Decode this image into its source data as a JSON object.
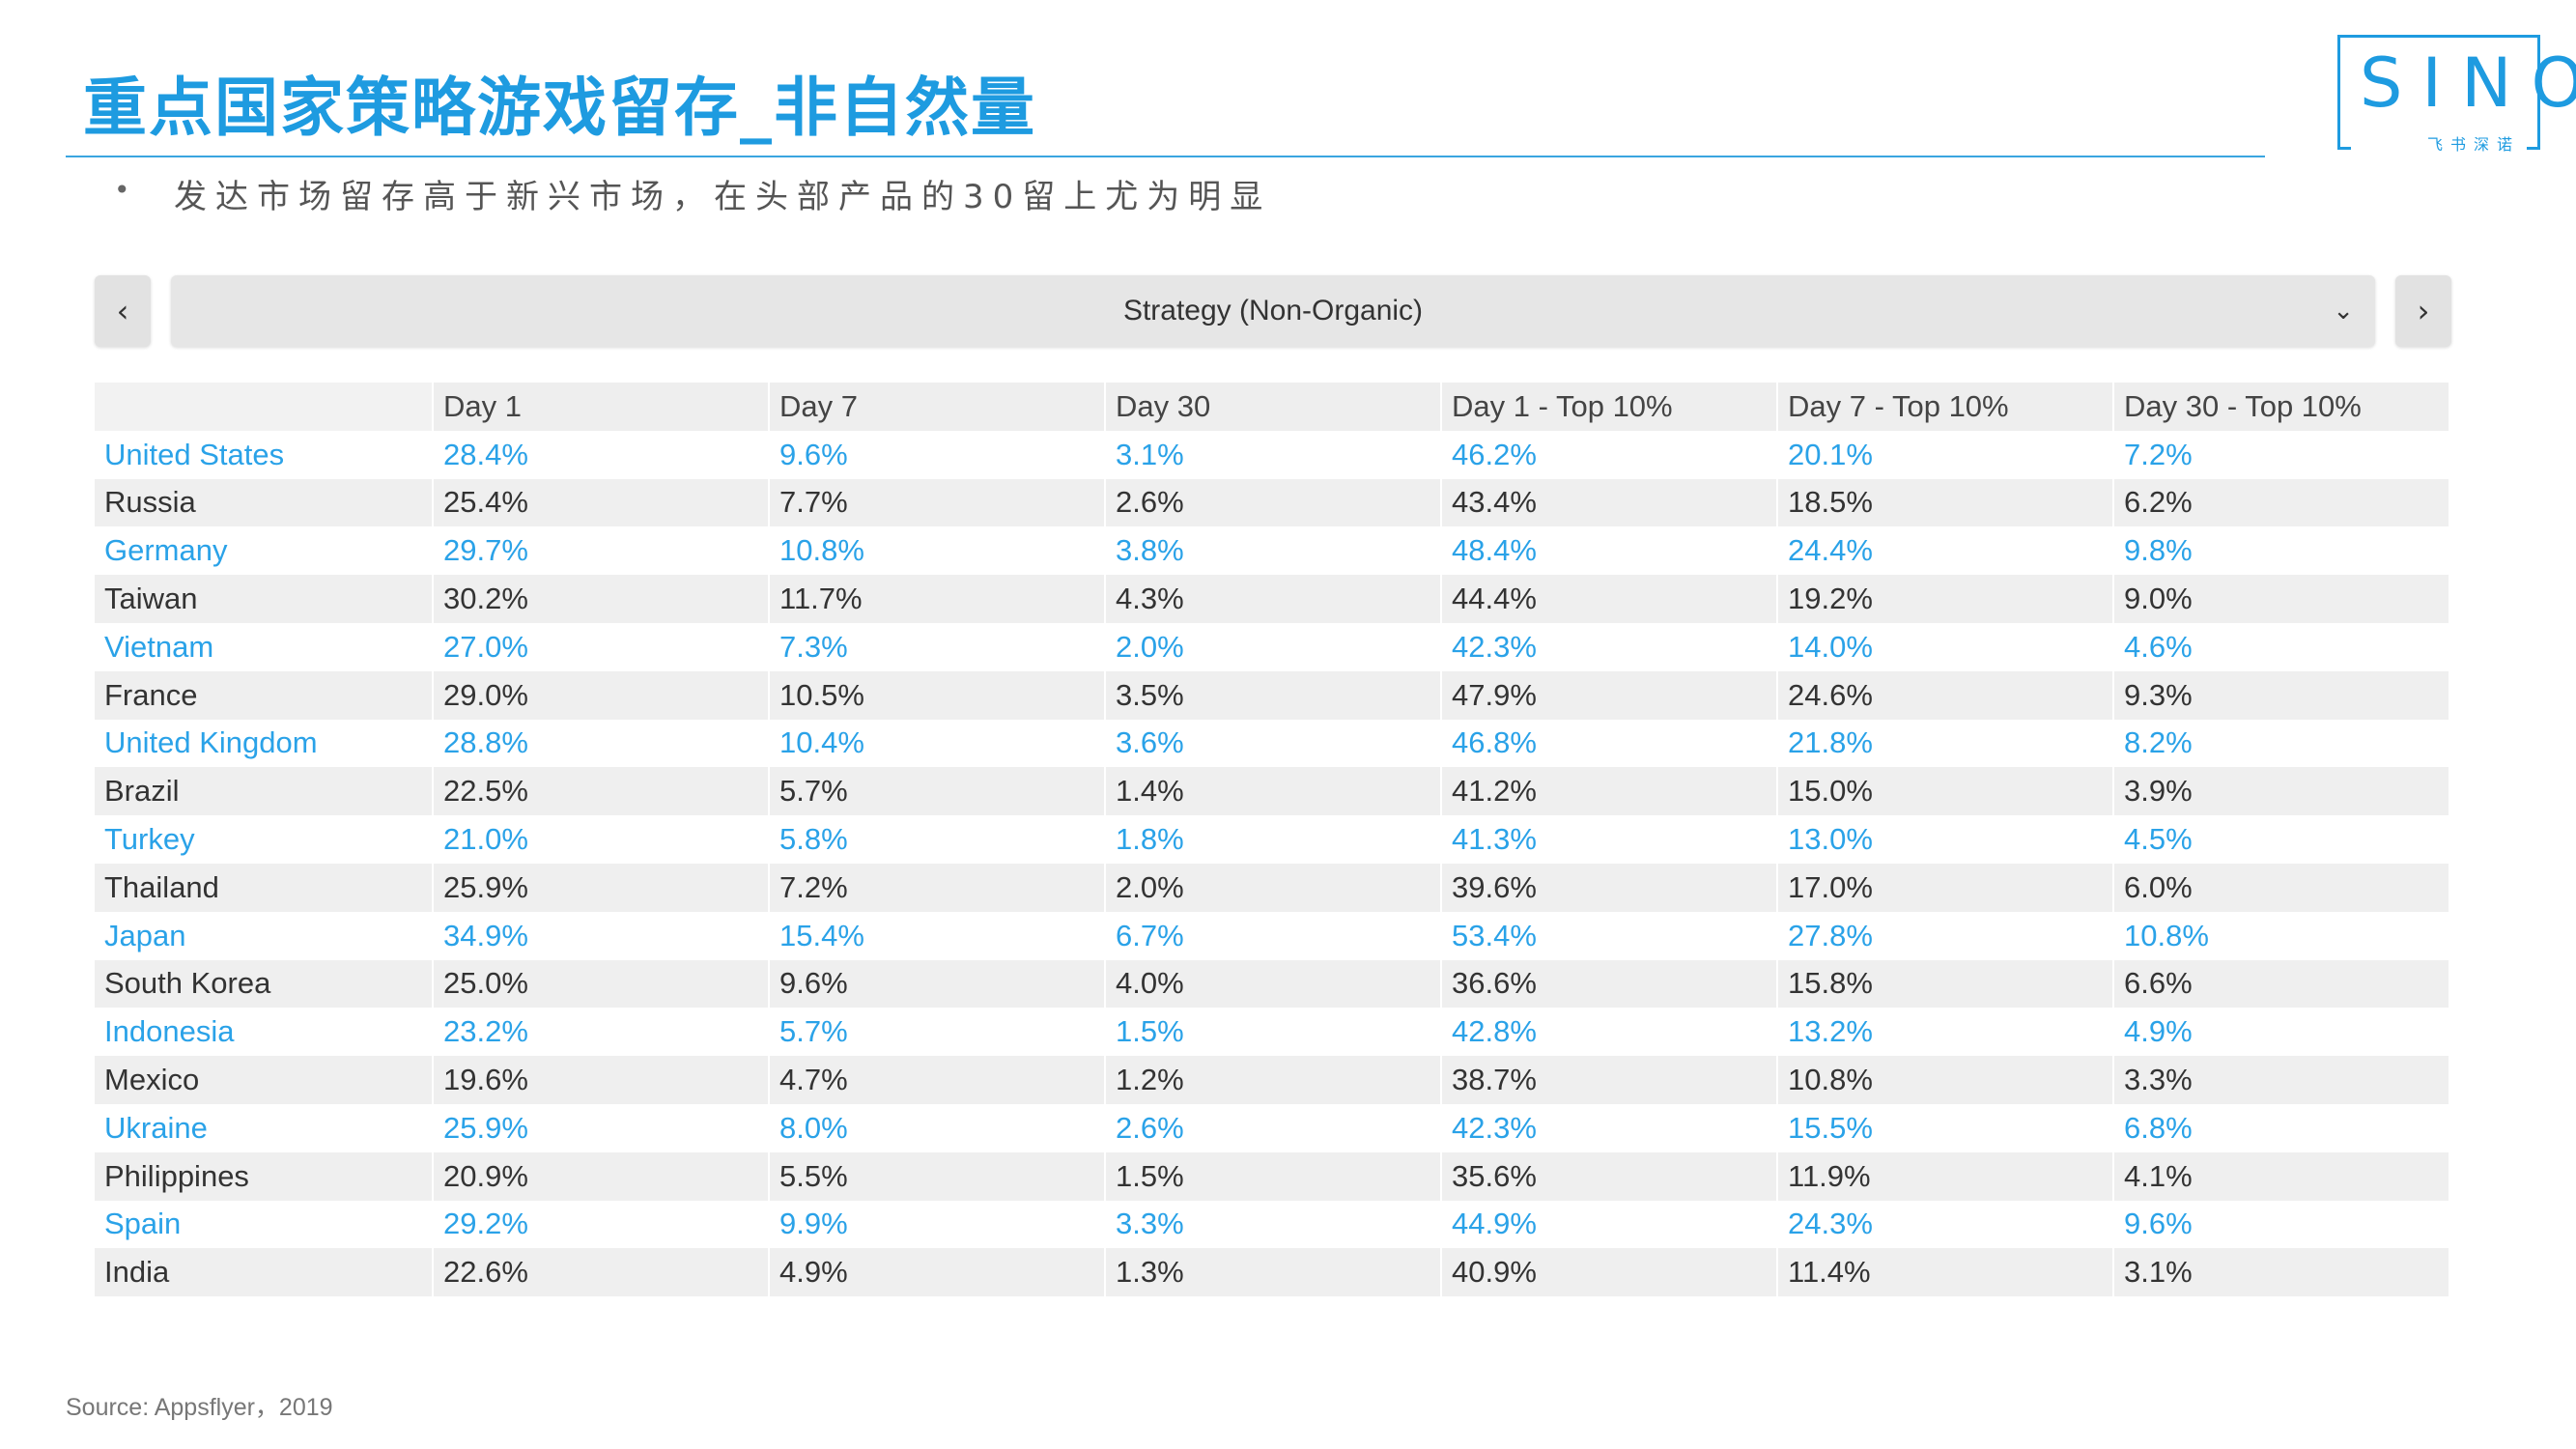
{
  "header": {
    "title": "重点国家策略游戏留存_非自然量",
    "subtitle": "发达市场留存高于新兴市场，在头部产品的30留上尤为明显",
    "bullet": "•"
  },
  "logo": {
    "word": "SINO",
    "sub": "飞书深诺"
  },
  "selector": {
    "label": "Strategy (Non-Organic)",
    "prev_icon": "‹",
    "next_icon": "›",
    "caret_icon": "⌄"
  },
  "table": {
    "columns": [
      "",
      "Day 1",
      "Day 7",
      "Day 30",
      "Day 1 - Top 10%",
      "Day 7 - Top 10%",
      "Day 30 - Top 10%"
    ],
    "rows": [
      [
        "United States",
        "28.4%",
        "9.6%",
        "3.1%",
        "46.2%",
        "20.1%",
        "7.2%"
      ],
      [
        "Russia",
        "25.4%",
        "7.7%",
        "2.6%",
        "43.4%",
        "18.5%",
        "6.2%"
      ],
      [
        "Germany",
        "29.7%",
        "10.8%",
        "3.8%",
        "48.4%",
        "24.4%",
        "9.8%"
      ],
      [
        "Taiwan",
        "30.2%",
        "11.7%",
        "4.3%",
        "44.4%",
        "19.2%",
        "9.0%"
      ],
      [
        "Vietnam",
        "27.0%",
        "7.3%",
        "2.0%",
        "42.3%",
        "14.0%",
        "4.6%"
      ],
      [
        "France",
        "29.0%",
        "10.5%",
        "3.5%",
        "47.9%",
        "24.6%",
        "9.3%"
      ],
      [
        "United Kingdom",
        "28.8%",
        "10.4%",
        "3.6%",
        "46.8%",
        "21.8%",
        "8.2%"
      ],
      [
        "Brazil",
        "22.5%",
        "5.7%",
        "1.4%",
        "41.2%",
        "15.0%",
        "3.9%"
      ],
      [
        "Turkey",
        "21.0%",
        "5.8%",
        "1.8%",
        "41.3%",
        "13.0%",
        "4.5%"
      ],
      [
        "Thailand",
        "25.9%",
        "7.2%",
        "2.0%",
        "39.6%",
        "17.0%",
        "6.0%"
      ],
      [
        "Japan",
        "34.9%",
        "15.4%",
        "6.7%",
        "53.4%",
        "27.8%",
        "10.8%"
      ],
      [
        "South Korea",
        "25.0%",
        "9.6%",
        "4.0%",
        "36.6%",
        "15.8%",
        "6.6%"
      ],
      [
        "Indonesia",
        "23.2%",
        "5.7%",
        "1.5%",
        "42.8%",
        "13.2%",
        "4.9%"
      ],
      [
        "Mexico",
        "19.6%",
        "4.7%",
        "1.2%",
        "38.7%",
        "10.8%",
        "3.3%"
      ],
      [
        "Ukraine",
        "25.9%",
        "8.0%",
        "2.6%",
        "42.3%",
        "15.5%",
        "6.8%"
      ],
      [
        "Philippines",
        "20.9%",
        "5.5%",
        "1.5%",
        "35.6%",
        "11.9%",
        "4.1%"
      ],
      [
        "Spain",
        "29.2%",
        "9.9%",
        "3.3%",
        "44.9%",
        "24.3%",
        "9.6%"
      ],
      [
        "India",
        "22.6%",
        "4.9%",
        "1.3%",
        "40.9%",
        "11.4%",
        "3.1%"
      ]
    ]
  },
  "footer": {
    "source": "Source: Appsflyer，2019"
  },
  "colors": {
    "accent": "#1e9be0",
    "highlight_text": "#2aa2e8"
  }
}
